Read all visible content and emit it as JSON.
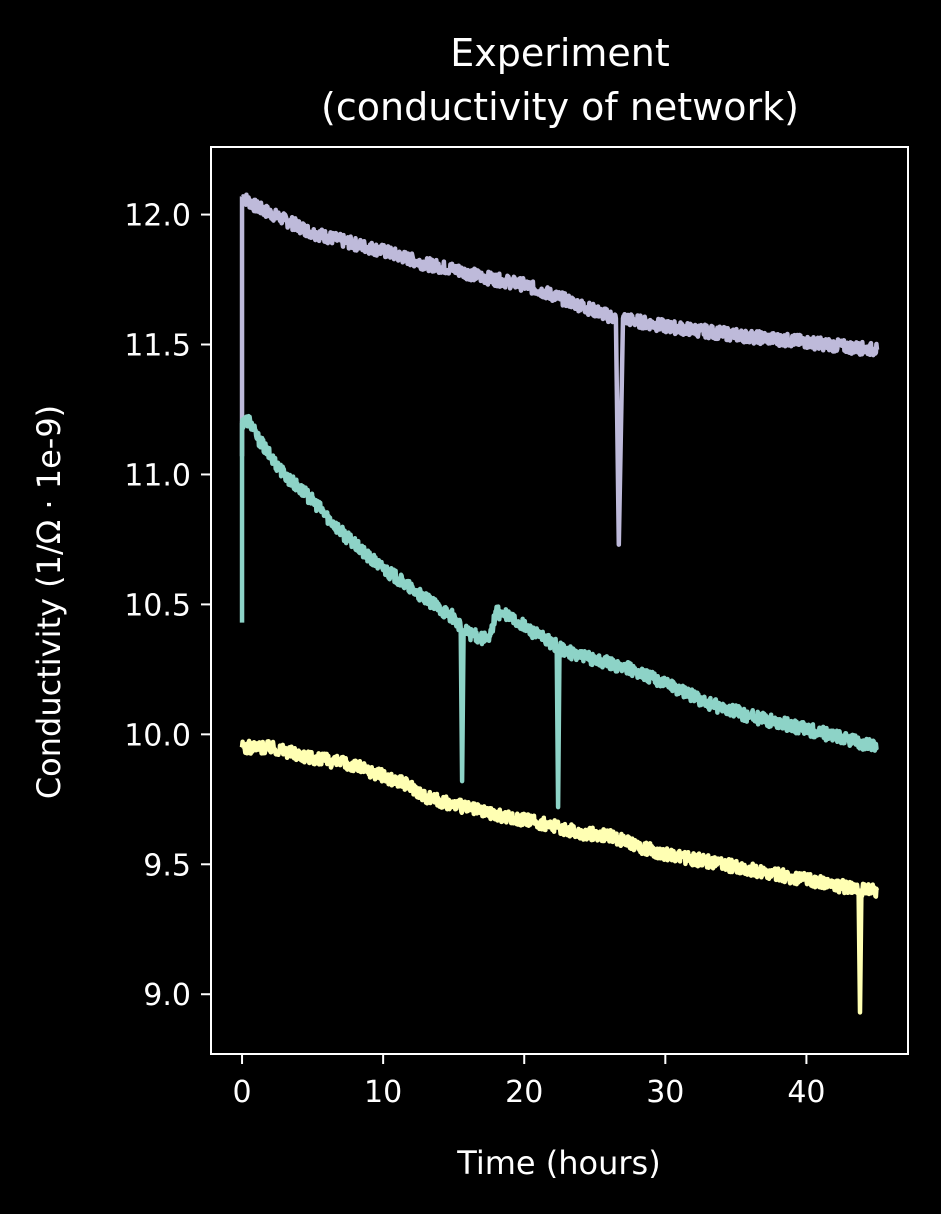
{
  "chart_data": {
    "type": "line",
    "title_lines": [
      "Experiment",
      "(conductivity of network)"
    ],
    "xlabel": "Time (hours)",
    "ylabel": "Conductivity (1/Ω · 1e-9)",
    "xlim": [
      -2.2,
      47.2
    ],
    "ylim": [
      8.77,
      12.26
    ],
    "xticks": [
      0,
      10,
      20,
      30,
      40
    ],
    "xtick_labels": [
      "0",
      "10",
      "20",
      "30",
      "40"
    ],
    "yticks": [
      9.0,
      9.5,
      10.0,
      10.5,
      11.0,
      11.5,
      12.0
    ],
    "ytick_labels": [
      "9.0",
      "9.5",
      "10.0",
      "10.5",
      "11.0",
      "11.5",
      "12.0"
    ],
    "grid": false,
    "legend": "none",
    "colors": {
      "background": "#000000",
      "foreground": "#ffffff"
    },
    "series": [
      {
        "color": "#bebada",
        "x": [
          0,
          1,
          3,
          5,
          7,
          10,
          13,
          15,
          17,
          20,
          23,
          26.5,
          26.7,
          27,
          28,
          30,
          33,
          36,
          40,
          43,
          45
        ],
        "y": [
          12.07,
          12.03,
          11.98,
          11.93,
          11.9,
          11.86,
          11.81,
          11.79,
          11.76,
          11.73,
          11.67,
          11.6,
          10.73,
          11.6,
          11.59,
          11.57,
          11.55,
          11.53,
          11.51,
          11.49,
          11.48
        ],
        "spikes": [
          {
            "x": 0,
            "y": 11.07
          }
        ]
      },
      {
        "color": "#8dd3c7",
        "x": [
          0,
          0.5,
          1,
          2,
          3,
          5,
          7,
          9,
          11,
          13,
          15,
          15.5,
          15.6,
          15.7,
          16.5,
          17.5,
          18,
          19,
          21,
          22.3,
          22.4,
          22.5,
          24,
          27,
          30,
          33,
          36,
          40,
          43,
          45
        ],
        "y": [
          11.2,
          11.21,
          11.15,
          11.07,
          11.0,
          10.9,
          10.78,
          10.68,
          10.6,
          10.52,
          10.45,
          10.41,
          9.82,
          10.4,
          10.38,
          10.36,
          10.47,
          10.45,
          10.38,
          10.34,
          9.72,
          10.33,
          10.3,
          10.26,
          10.2,
          10.12,
          10.07,
          10.02,
          9.98,
          9.95
        ],
        "spikes": [
          {
            "x": 0,
            "y": 10.43
          }
        ]
      },
      {
        "color": "#ffffb3",
        "x": [
          0,
          2,
          5,
          8,
          10,
          12,
          13,
          15,
          18,
          21,
          24,
          26,
          28,
          30,
          33,
          36,
          40,
          43,
          43.7,
          43.8,
          43.9,
          45
        ],
        "y": [
          9.95,
          9.95,
          9.91,
          9.88,
          9.84,
          9.8,
          9.76,
          9.73,
          9.69,
          9.66,
          9.62,
          9.61,
          9.57,
          9.54,
          9.51,
          9.48,
          9.44,
          9.41,
          9.4,
          8.93,
          9.4,
          9.4
        ],
        "spikes": []
      }
    ]
  }
}
